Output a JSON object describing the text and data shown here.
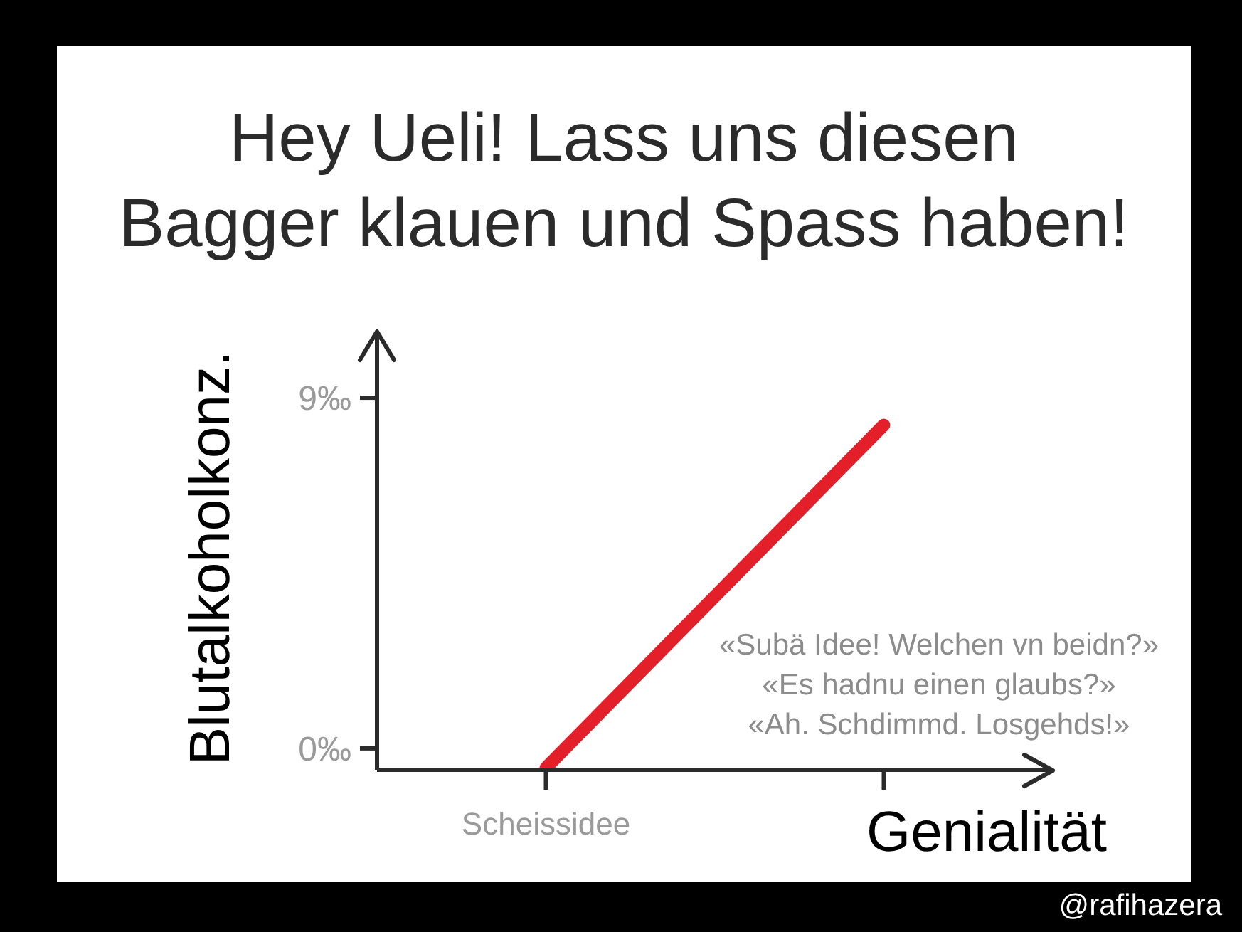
{
  "chart_data": {
    "type": "line",
    "title": "Hey Ueli! Lass uns diesen\nBagger klauen und Spass haben!",
    "xlabel": "Genialität",
    "ylabel": "Blutalkoholkonz.",
    "categories": [
      "Scheissidee",
      null
    ],
    "series": [
      {
        "color": "#e3202a",
        "values": [
          -0.5,
          8.3
        ]
      }
    ],
    "ylim": [
      -0.55,
      10.7
    ],
    "yticks": [
      {
        "value": 0,
        "label": "0‰"
      },
      {
        "value": 9,
        "label": "9‰"
      }
    ],
    "annotations": [
      "«Subä Idee! Welchen vn beidn?»",
      "«Es hadnu einen glaubs?»",
      "«Ah. Schdimmd. Losgehds!»",
      "@rafihazera"
    ]
  }
}
